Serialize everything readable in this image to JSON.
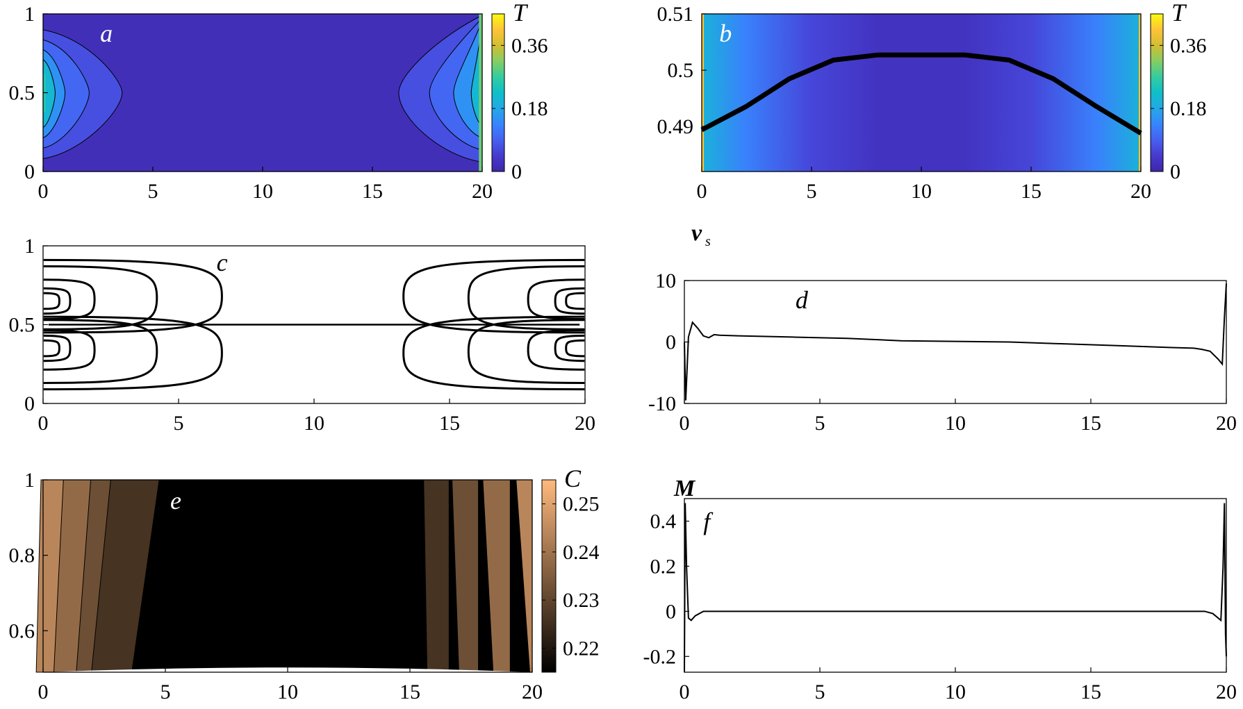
{
  "chart_data": [
    {
      "panel": "a",
      "type": "heatmap",
      "label": "a",
      "xlim": [
        0,
        20
      ],
      "ylim": [
        0,
        1
      ],
      "xticks": [
        "0",
        "5",
        "10",
        "15",
        "20"
      ],
      "yticks": [
        "0",
        "0.5",
        "1"
      ],
      "colorbar": {
        "title": "T",
        "ticks": [
          "0",
          "0.18",
          "0.36"
        ],
        "range": [
          0,
          0.45
        ]
      },
      "base_value": 0.02,
      "left_contour_levels_x_extent": [
        3.6,
        2.1,
        1.0,
        0.55
      ],
      "right_contour_levels_x_extent": [
        16.2,
        17.6,
        18.7,
        19.5
      ]
    },
    {
      "panel": "b",
      "type": "heatmap",
      "label": "b",
      "xlim": [
        0,
        20
      ],
      "ylim": [
        0.482,
        0.51
      ],
      "xticks": [
        "0",
        "5",
        "10",
        "15",
        "20"
      ],
      "yticks": [
        "0.49",
        "0.5",
        "0.51"
      ],
      "colorbar": {
        "title": "T",
        "ticks": [
          "0",
          "0.18",
          "0.36"
        ],
        "range": [
          0,
          0.45
        ]
      },
      "x_profile_T": [
        [
          0,
          0.2
        ],
        [
          2,
          0.13
        ],
        [
          5,
          0.06
        ],
        [
          8,
          0.03
        ],
        [
          10,
          0.03
        ],
        [
          12,
          0.03
        ],
        [
          15,
          0.06
        ],
        [
          18,
          0.13
        ],
        [
          20,
          0.2
        ]
      ],
      "interface_curve": {
        "x": [
          0,
          2,
          4,
          6,
          8,
          10,
          12,
          14,
          16,
          18,
          20
        ],
        "y": [
          0.4894,
          0.4935,
          0.4985,
          0.5018,
          0.5027,
          0.5027,
          0.5027,
          0.5018,
          0.4985,
          0.4935,
          0.4888
        ]
      }
    },
    {
      "panel": "c",
      "type": "line",
      "label": "c",
      "xlim": [
        0,
        20
      ],
      "ylim": [
        0,
        1
      ],
      "xticks": [
        "0",
        "5",
        "10",
        "15",
        "20"
      ],
      "yticks": [
        "0",
        "0.5",
        "1"
      ],
      "streamline_extents_left": [
        6.6,
        4.2,
        1.9,
        1.0,
        0.6
      ],
      "streamline_extents_right": [
        13.3,
        15.7,
        17.9,
        18.9,
        19.3
      ]
    },
    {
      "panel": "d",
      "type": "line",
      "label": "d",
      "ylabel": "v",
      "ylabel_sub": "s",
      "xlim": [
        0,
        20
      ],
      "ylim": [
        -10,
        10
      ],
      "xticks": [
        "0",
        "5",
        "10",
        "15",
        "20"
      ],
      "yticks": [
        "-10",
        "0",
        "10"
      ],
      "series": [
        {
          "x": [
            0,
            0.05,
            0.15,
            0.3,
            0.5,
            0.7,
            0.9,
            1.1,
            1.3,
            2,
            4,
            6,
            8,
            10,
            12,
            14,
            16,
            18,
            18.8,
            19.1,
            19.4,
            19.7,
            19.85,
            19.93,
            20
          ],
          "y": [
            0,
            -9.5,
            0.8,
            3.2,
            2.2,
            1.0,
            0.7,
            1.2,
            1.1,
            1.0,
            0.8,
            0.6,
            0.2,
            0.1,
            0.0,
            -0.3,
            -0.6,
            -0.9,
            -1.0,
            -1.2,
            -1.5,
            -2.8,
            -3.6,
            4,
            9.5
          ]
        }
      ]
    },
    {
      "panel": "e",
      "type": "heatmap",
      "label": "e",
      "xlim": [
        0,
        20
      ],
      "ylim": [
        0.49,
        1
      ],
      "xticks": [
        "0",
        "5",
        "10",
        "15",
        "20"
      ],
      "yticks": [
        "0.6",
        "0.8",
        "1"
      ],
      "colorbar": {
        "title": "C",
        "ticks": [
          "0.22",
          "0.23",
          "0.24",
          "0.25"
        ],
        "range": [
          0.215,
          0.255
        ]
      },
      "bands_left_x": [
        0.0,
        1.0,
        2.2,
        3.1,
        4.3
      ],
      "bands_right_x": [
        15.5,
        16.6,
        17.8,
        19.1,
        20.0
      ],
      "band_values": [
        0.244,
        0.238,
        0.232,
        0.226,
        0.215
      ]
    },
    {
      "panel": "f",
      "type": "line",
      "label": "f",
      "ylabel": "M",
      "xlim": [
        0,
        20
      ],
      "ylim": [
        -0.27,
        0.5
      ],
      "xticks": [
        "0",
        "5",
        "10",
        "15",
        "20"
      ],
      "yticks": [
        "-0.2",
        "0",
        "0.2",
        "0.4"
      ],
      "series": [
        {
          "x": [
            0,
            0.03,
            0.08,
            0.15,
            0.25,
            0.4,
            0.7,
            1.0,
            2,
            5,
            10,
            15,
            18.8,
            19.2,
            19.5,
            19.7,
            19.8,
            19.88,
            19.93,
            19.97,
            20
          ],
          "y": [
            -0.27,
            0.48,
            0.2,
            -0.03,
            -0.04,
            -0.02,
            0.0,
            0.0,
            0,
            0,
            0,
            0,
            0,
            0.0,
            -0.01,
            -0.03,
            -0.04,
            0.2,
            0.48,
            -0.1,
            -0.2
          ]
        }
      ]
    }
  ]
}
